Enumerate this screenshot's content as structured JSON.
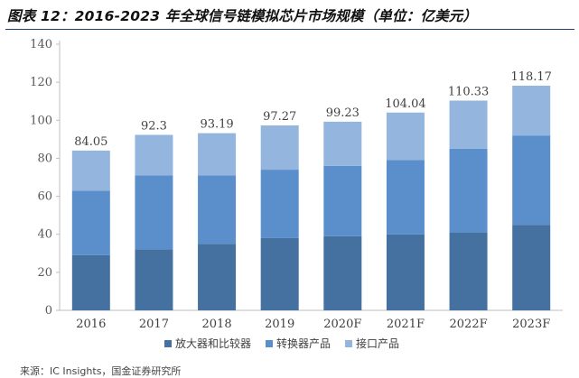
{
  "figure": {
    "title": "图表 12：2016-2023 年全球信号链模拟芯片市场规模（单位：亿美元）",
    "source": "来源：IC Insights，国金证券研究所"
  },
  "chart_data": {
    "type": "bar",
    "stacked": true,
    "categories": [
      "2016",
      "2017",
      "2018",
      "2019",
      "2020F",
      "2021F",
      "2022F",
      "2023F"
    ],
    "series": [
      {
        "name": "放大器和比较器",
        "color": "#44719f",
        "values": [
          29,
          32,
          35,
          38,
          39,
          40,
          41,
          45
        ]
      },
      {
        "name": "转换器产品",
        "color": "#5a8fcc",
        "values": [
          34,
          39,
          36,
          36,
          37,
          39,
          44,
          47
        ]
      },
      {
        "name": "接口产品",
        "color": "#93b5de",
        "values": [
          21.05,
          21.3,
          22.19,
          23.27,
          23.23,
          25.04,
          25.33,
          26.17
        ]
      }
    ],
    "totals": [
      "84.05",
      "92.3",
      "93.19",
      "97.27",
      "99.23",
      "104.04",
      "110.33",
      "118.17"
    ],
    "ylim": [
      0,
      140
    ],
    "yticks": [
      0,
      20,
      40,
      60,
      80,
      100,
      120,
      140
    ],
    "grid": false,
    "legend_position": "bottom"
  }
}
